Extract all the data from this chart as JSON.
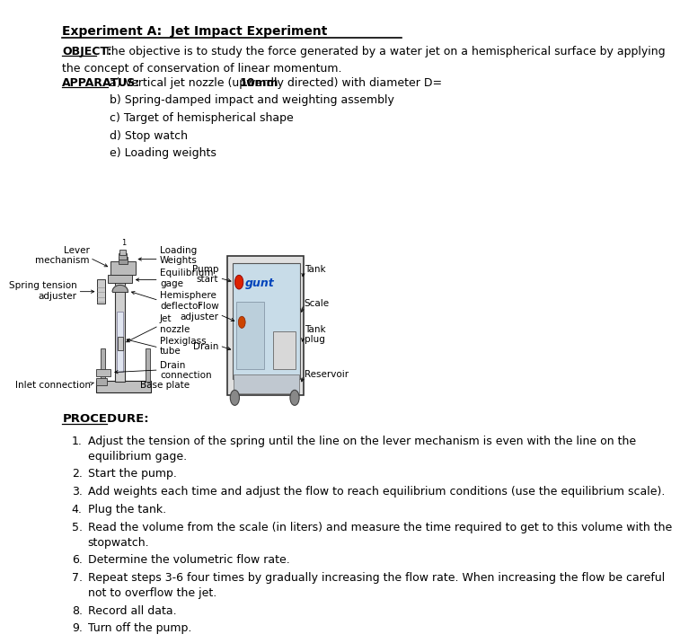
{
  "title": "Experiment A:  Jet Impact Experiment",
  "bg_color": "#ffffff",
  "text_color": "#000000",
  "object_label": "OBJECT:",
  "object_text": "  The objective is to study the force generated by a water jet on a hemispherical surface by applying\nthe concept of conservation of linear momentum.",
  "apparatus_label": "APPARATUS:",
  "apparatus_items": [
    "a) Vertical jet nozzle (upwardly directed) with diameter D=",
    "10mm",
    "b) Spring-damped impact and weighting assembly",
    "c) Target of hemispherical shape",
    "d) Stop watch",
    "e) Loading weights"
  ],
  "procedure_label": "PROCEDURE:",
  "procedure_items": [
    [
      "Adjust the tension of the spring until the line on the lever mechanism is even with the line on the",
      "equilibrium gage."
    ],
    [
      "Start the pump."
    ],
    [
      "Add weights each time and adjust the flow to reach equilibrium conditions (use the equilibrium scale)."
    ],
    [
      "Plug the tank."
    ],
    [
      "Read the volume from the scale (in liters) and measure the time required to get to this volume with the",
      "stopwatch."
    ],
    [
      "Determine the volumetric flow rate."
    ],
    [
      "Repeat steps 3-6 four times by gradually increasing the flow rate. When increasing the flow be careful",
      "not to overflow the jet."
    ],
    [
      "Record all data."
    ],
    [
      "Turn off the pump."
    ]
  ]
}
